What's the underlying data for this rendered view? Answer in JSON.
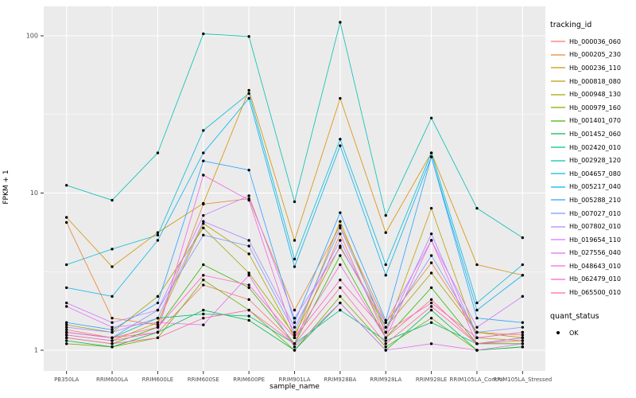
{
  "figure": {
    "xlabel": "sample_name",
    "ylabel": "FPKM + 1"
  },
  "legends": {
    "tracking": {
      "title": "tracking_id"
    },
    "quant": {
      "title": "quant_status",
      "items": [
        {
          "label": "OK",
          "color": "#000000"
        }
      ]
    }
  },
  "chart_data": {
    "type": "line",
    "title": "",
    "xlabel": "sample_name",
    "ylabel": "FPKM + 1",
    "x_axis": {
      "categories": [
        "PB350LA",
        "RRIM600LA",
        "RRIM600LE",
        "RRIM600SE",
        "RRIM600PE",
        "RRIM901LA",
        "RRIM928BA",
        "RRIM928LA",
        "RRIM928LE",
        "RRIM105LA_Control",
        "RRIM105LA_Stressed"
      ]
    },
    "y_axis": {
      "scale": "log10",
      "ticks": [
        1,
        10,
        100
      ],
      "minor_ticks": [
        3.1623,
        31.623
      ],
      "range": [
        1,
        130
      ]
    },
    "panel": {
      "background": "#EBEBEB",
      "grid_color": "#FFFFFF",
      "tick_color": "#333333",
      "tick_label_color": "#4D4D4D"
    },
    "point_color": "#000000",
    "legend_position": "right",
    "series": [
      {
        "name": "Hb_000036_060",
        "color": "#F8766D",
        "values": [
          1.35,
          1.2,
          1.3,
          2.6,
          2.1,
          1.1,
          5.5,
          1.2,
          2.1,
          1.1,
          1.2
        ]
      },
      {
        "name": "Hb_000205_230",
        "color": "#EA8331",
        "values": [
          6.5,
          1.6,
          1.45,
          8.5,
          9.2,
          1.8,
          6.2,
          1.5,
          3.6,
          1.3,
          1.25
        ]
      },
      {
        "name": "Hb_000236_110",
        "color": "#D89000",
        "values": [
          7.0,
          3.4,
          5.6,
          8.6,
          45,
          5.0,
          40,
          5.6,
          18,
          3.5,
          3.0
        ]
      },
      {
        "name": "Hb_000818_080",
        "color": "#C09B00",
        "values": [
          1.25,
          1.15,
          1.5,
          6.4,
          4.1,
          1.2,
          6.6,
          1.3,
          8.0,
          1.2,
          1.15
        ]
      },
      {
        "name": "Hb_000948_130",
        "color": "#A3A500",
        "values": [
          1.45,
          1.3,
          2.2,
          6.0,
          3.1,
          1.25,
          4.6,
          1.4,
          3.1,
          1.3,
          1.2
        ]
      },
      {
        "name": "Hb_000979_160",
        "color": "#7CAE00",
        "values": [
          1.1,
          1.05,
          1.2,
          2.8,
          1.8,
          1.0,
          2.2,
          1.05,
          1.6,
          1.0,
          1.05
        ]
      },
      {
        "name": "Hb_001401_070",
        "color": "#39B600",
        "values": [
          1.2,
          1.1,
          1.4,
          3.5,
          2.5,
          1.1,
          4.0,
          1.2,
          2.5,
          1.1,
          1.1
        ]
      },
      {
        "name": "Hb_001452_060",
        "color": "#00BB4E",
        "values": [
          1.15,
          1.05,
          1.3,
          1.8,
          1.55,
          1.0,
          2.0,
          1.0,
          1.8,
          1.0,
          1.05
        ]
      },
      {
        "name": "Hb_002420_010",
        "color": "#00C087",
        "values": [
          1.3,
          1.2,
          1.6,
          1.7,
          1.65,
          1.1,
          1.8,
          1.15,
          1.5,
          1.1,
          1.2
        ]
      },
      {
        "name": "Hb_002928_120",
        "color": "#00C0B2",
        "values": [
          11.2,
          9.0,
          18.0,
          103,
          99,
          8.8,
          122,
          7.2,
          30,
          8.0,
          5.2
        ]
      },
      {
        "name": "Hb_004657_080",
        "color": "#00BCD8",
        "values": [
          3.5,
          4.4,
          5.4,
          25,
          43,
          3.8,
          22,
          3.5,
          18,
          2.0,
          3.5
        ]
      },
      {
        "name": "Hb_005217_040",
        "color": "#00B3F2",
        "values": [
          2.5,
          2.2,
          5.0,
          18,
          40,
          3.4,
          20,
          3.0,
          17,
          1.8,
          3.0
        ]
      },
      {
        "name": "Hb_005288_210",
        "color": "#29A3FF",
        "values": [
          1.5,
          1.35,
          2.0,
          16,
          14,
          1.5,
          7.5,
          1.55,
          17,
          1.6,
          1.5
        ]
      },
      {
        "name": "Hb_007027_010",
        "color": "#7997FF",
        "values": [
          1.3,
          1.2,
          1.8,
          5.4,
          4.6,
          1.3,
          6.0,
          1.4,
          4.0,
          1.3,
          1.4
        ]
      },
      {
        "name": "Hb_007802_010",
        "color": "#AC88FF",
        "values": [
          1.4,
          1.3,
          1.6,
          6.6,
          5.0,
          1.4,
          5.0,
          1.3,
          5.5,
          1.2,
          1.3
        ]
      },
      {
        "name": "Hb_019654_110",
        "color": "#CF78FF",
        "values": [
          2.0,
          1.5,
          1.8,
          7.2,
          9.6,
          1.6,
          4.5,
          1.5,
          5.0,
          1.4,
          2.2
        ]
      },
      {
        "name": "Hb_027556_040",
        "color": "#E76BF3",
        "values": [
          1.9,
          1.4,
          1.5,
          1.45,
          3.0,
          1.05,
          2.0,
          1.0,
          1.1,
          1.0,
          1.1
        ]
      },
      {
        "name": "Hb_048643_010",
        "color": "#F763E0",
        "values": [
          1.25,
          1.15,
          1.3,
          13,
          9.0,
          1.2,
          3.5,
          1.2,
          5.0,
          1.1,
          1.2
        ]
      },
      {
        "name": "Hb_062479_010",
        "color": "#FF61C9",
        "values": [
          1.3,
          1.2,
          1.4,
          3.0,
          2.6,
          1.2,
          2.8,
          1.3,
          2.0,
          1.2,
          1.3
        ]
      },
      {
        "name": "Hb_065500_010",
        "color": "#FF68A1",
        "values": [
          1.2,
          1.1,
          1.2,
          1.6,
          1.8,
          1.1,
          2.5,
          1.1,
          1.9,
          1.1,
          1.15
        ]
      }
    ]
  }
}
